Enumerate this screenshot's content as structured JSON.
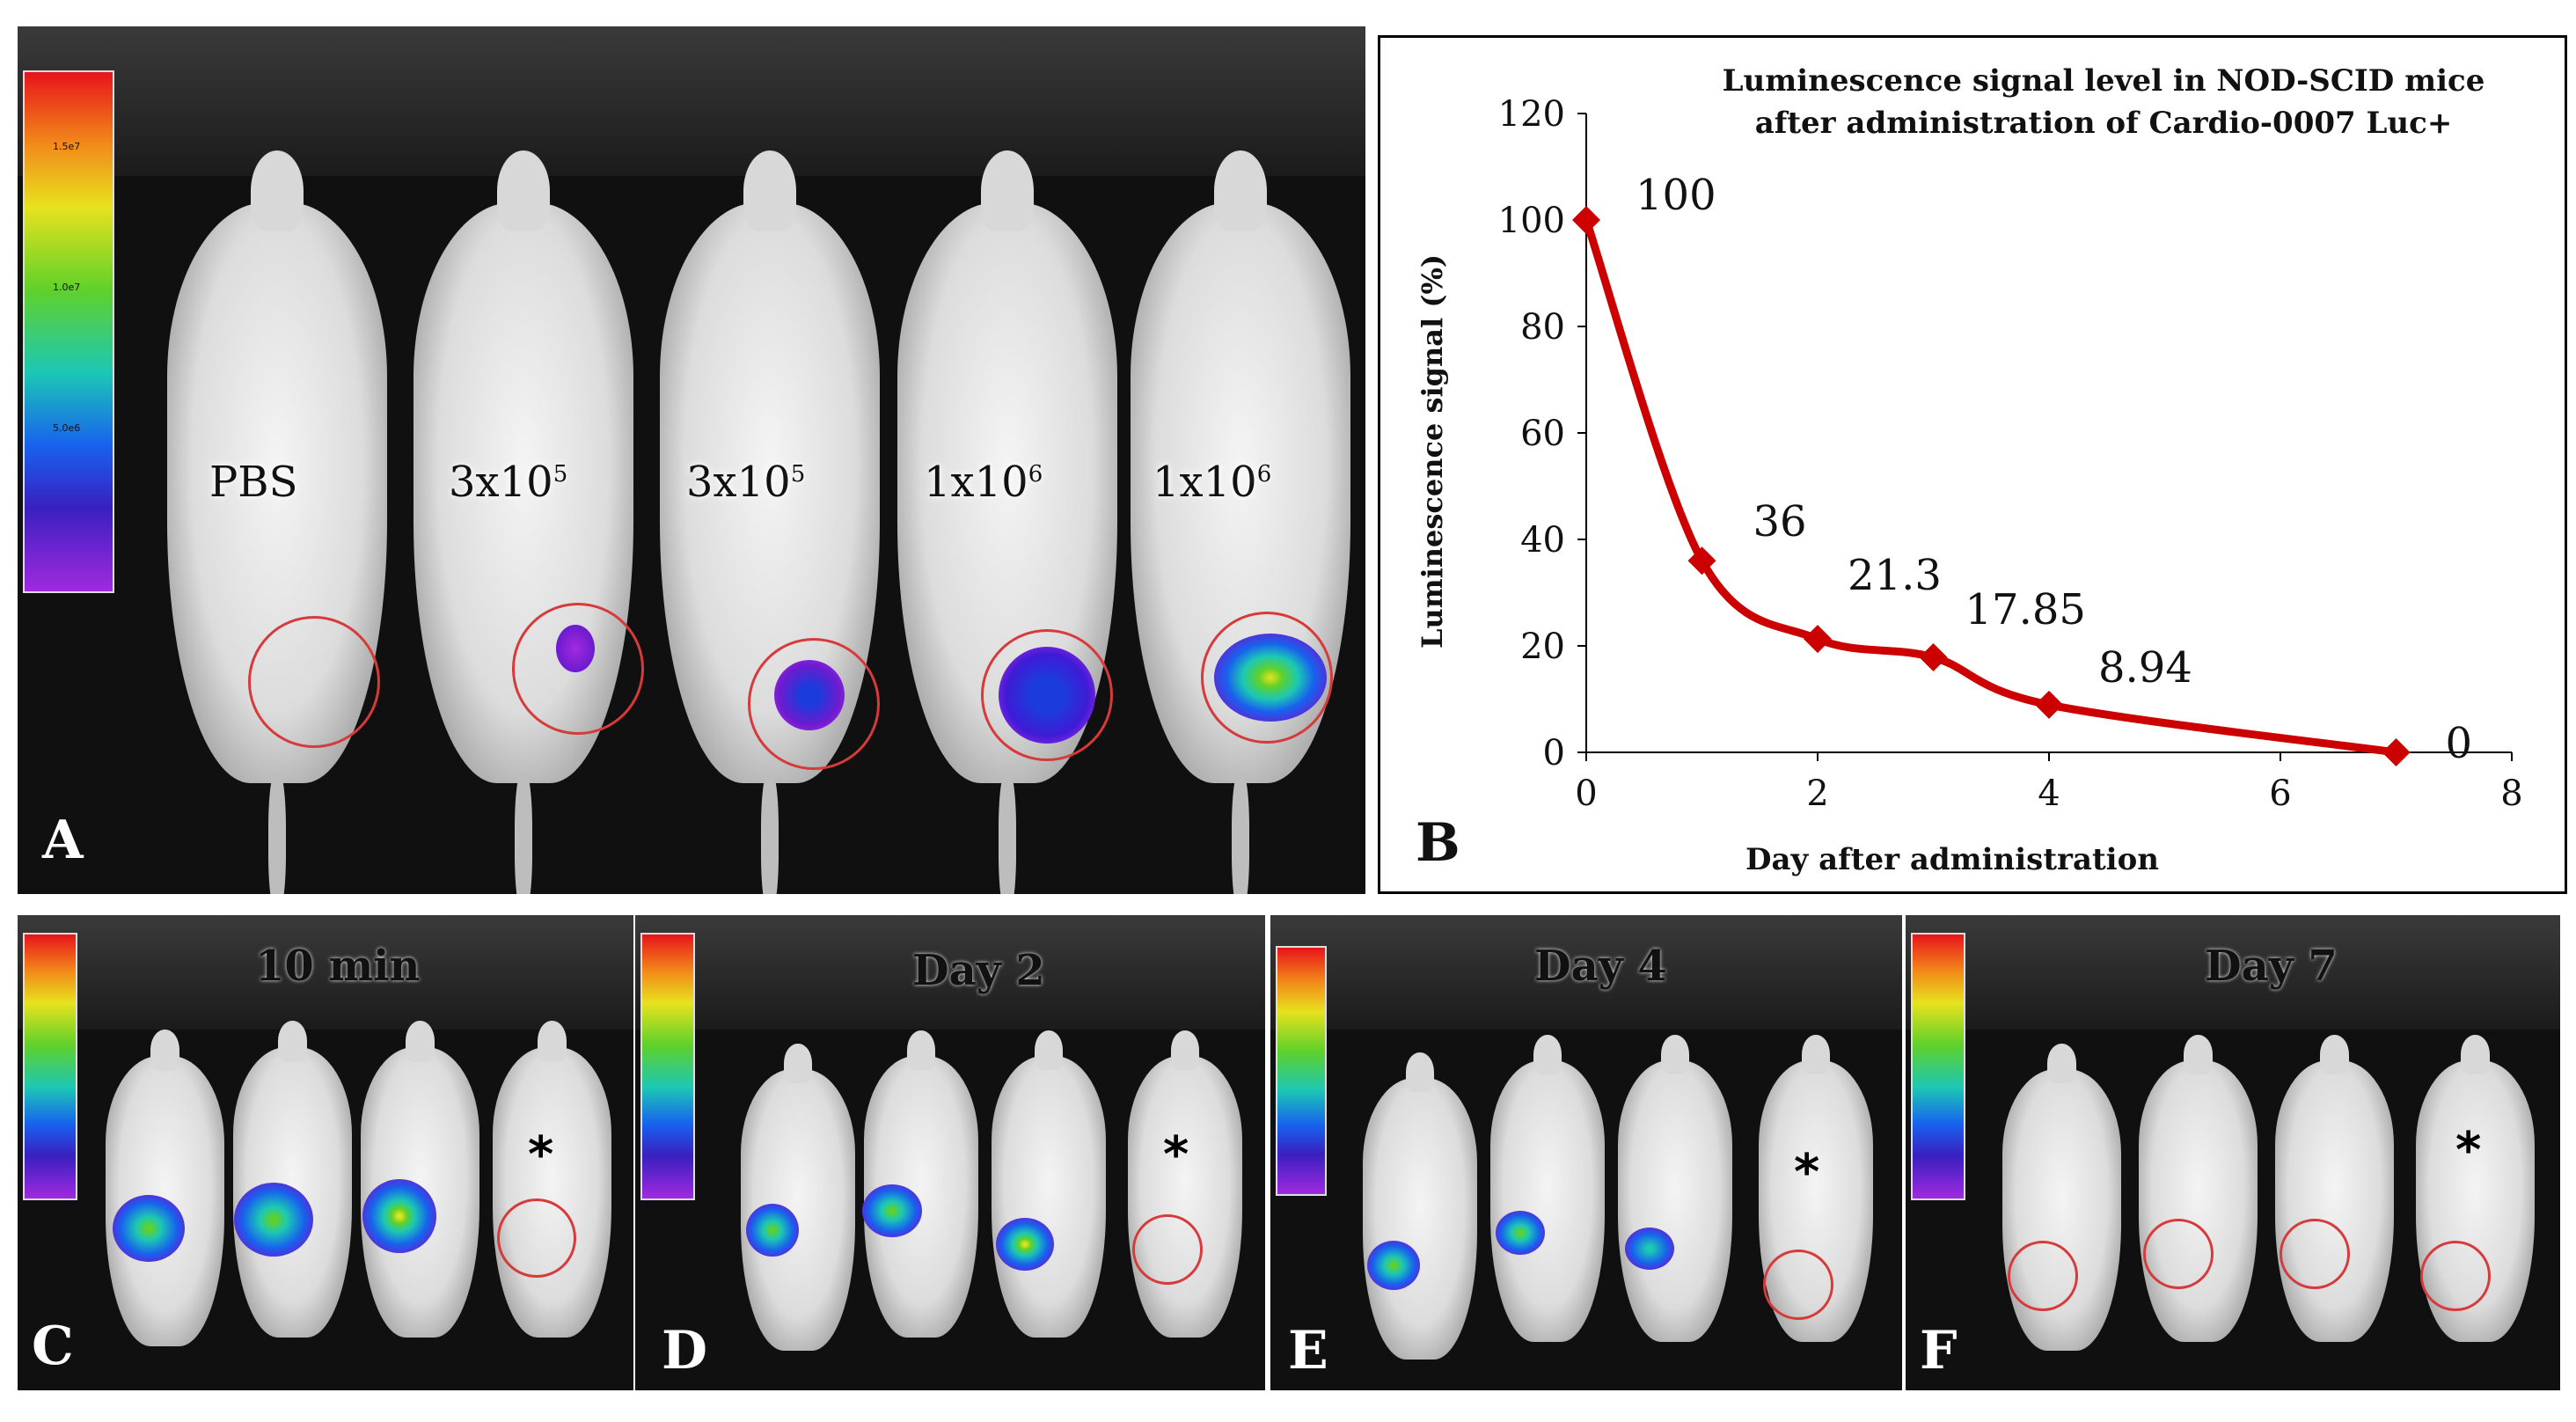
{
  "panels": {
    "A": {
      "letter": "A",
      "scale_ticks": [
        "1.5e7",
        "1.0e7",
        "5.0e6"
      ],
      "groups": [
        "PBS",
        "3x10",
        "3x10",
        "1x10",
        "1x10"
      ],
      "group_exponents": [
        "",
        "5",
        "5",
        "6",
        "6"
      ]
    },
    "C": {
      "letter": "C",
      "timepoint": "10 min",
      "marker": "*"
    },
    "D": {
      "letter": "D",
      "timepoint": "Day 2",
      "marker": "*"
    },
    "E": {
      "letter": "E",
      "timepoint": "Day 4",
      "marker": "*"
    },
    "F": {
      "letter": "F",
      "timepoint": "Day 7",
      "marker": "*"
    }
  },
  "chart_data": {
    "panel_letter": "B",
    "type": "line",
    "title": "Luminescence signal level in NOD-SCID mice after administration of Cardio-0007 Luc+",
    "title_lines": [
      "Luminescence signal level in NOD-SCID mice",
      "after administration of Cardio-0007 Luc+"
    ],
    "xlabel": "Day after administration",
    "ylabel": "Luminescence signal (%)",
    "xlim": [
      0,
      8
    ],
    "ylim": [
      0,
      120
    ],
    "xticks": [
      "0",
      "2",
      "4",
      "6",
      "8"
    ],
    "yticks": [
      "0",
      "20",
      "40",
      "60",
      "80",
      "100",
      "120"
    ],
    "x": [
      0,
      1,
      2,
      3,
      4,
      7
    ],
    "values": [
      100,
      36,
      21.3,
      17.85,
      8.94,
      0
    ],
    "data_labels": [
      "100",
      "36",
      "21.3",
      "17.85",
      "8.94",
      "0"
    ],
    "line_color": "#cc0000",
    "marker": "diamond",
    "grid": false
  }
}
